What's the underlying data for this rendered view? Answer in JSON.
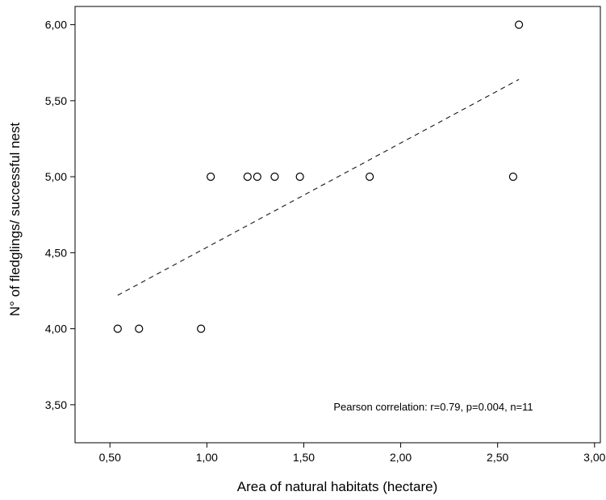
{
  "chart_data": {
    "type": "scatter",
    "xlabel": "Area of natural habitats (hectare)",
    "ylabel": "N° of fledglings/ successful nest",
    "xlim": [
      0.32,
      3.03
    ],
    "ylim": [
      3.25,
      6.12
    ],
    "x_ticks": [
      0.5,
      1.0,
      1.5,
      2.0,
      2.5,
      3.0
    ],
    "x_tick_labels": [
      "0,50",
      "1,00",
      "1,50",
      "2,00",
      "2,50",
      "3,00"
    ],
    "y_ticks": [
      3.5,
      4.0,
      4.5,
      5.0,
      5.5,
      6.0
    ],
    "y_tick_labels": [
      "3,50",
      "4,00",
      "4,50",
      "5,00",
      "5,50",
      "6,00"
    ],
    "grid": false,
    "points": [
      {
        "x": 0.54,
        "y": 4.0
      },
      {
        "x": 0.65,
        "y": 4.0
      },
      {
        "x": 0.97,
        "y": 4.0
      },
      {
        "x": 1.02,
        "y": 5.0
      },
      {
        "x": 1.21,
        "y": 5.0
      },
      {
        "x": 1.26,
        "y": 5.0
      },
      {
        "x": 1.35,
        "y": 5.0
      },
      {
        "x": 1.48,
        "y": 5.0
      },
      {
        "x": 1.84,
        "y": 5.0
      },
      {
        "x": 2.58,
        "y": 5.0
      },
      {
        "x": 2.61,
        "y": 6.0
      }
    ],
    "trendline": {
      "x_start": 0.54,
      "y_start": 4.22,
      "x_end": 2.61,
      "y_end": 5.64,
      "style": "dashed"
    },
    "annotation": "Pearson correlation: r=0.79, p=0.004, n=11",
    "colors": {
      "axis": "#000000",
      "marker_stroke": "#000000",
      "marker_fill": "#ffffff",
      "trendline": "#000000"
    }
  }
}
